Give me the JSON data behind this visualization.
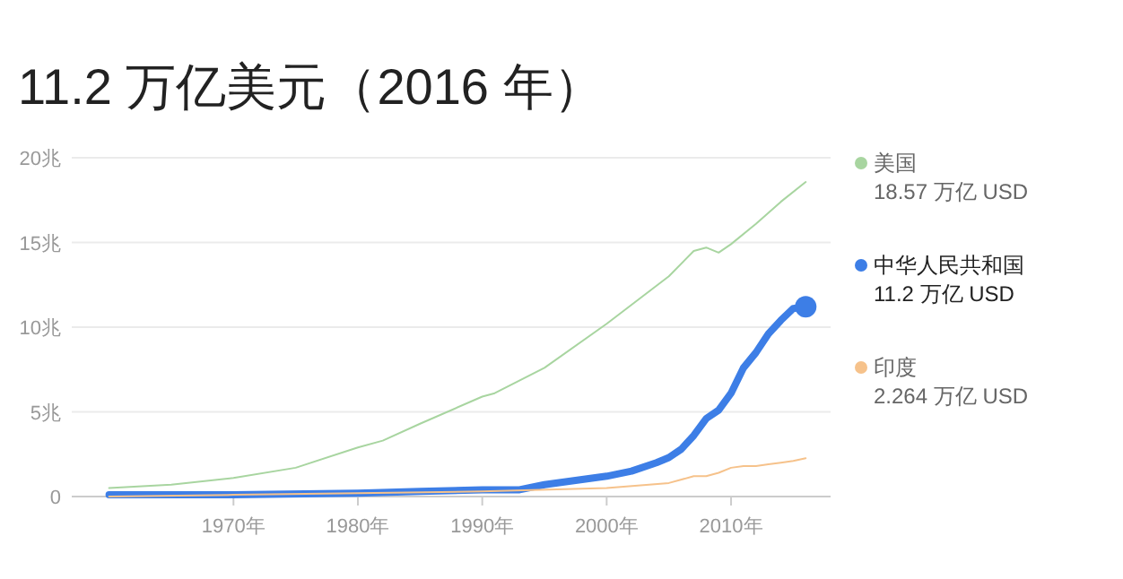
{
  "chart_data": {
    "type": "line",
    "title": "11.2 万亿美元（2016 年）",
    "xlim": [
      1957,
      2018
    ],
    "xticks": [
      {
        "value": 1970,
        "label": "1970年"
      },
      {
        "value": 1980,
        "label": "1980年"
      },
      {
        "value": 1990,
        "label": "1990年"
      },
      {
        "value": 2000,
        "label": "2000年"
      },
      {
        "value": 2010,
        "label": "2010年"
      }
    ],
    "ylim": [
      0,
      20
    ],
    "yticks": [
      {
        "value": 0,
        "label": "0"
      },
      {
        "value": 5,
        "label": "5兆"
      },
      {
        "value": 10,
        "label": "10兆"
      },
      {
        "value": 15,
        "label": "15兆"
      },
      {
        "value": 20,
        "label": "20兆"
      }
    ],
    "grid": "y",
    "legend": "right",
    "series": [
      {
        "name": "美国",
        "color": "#a8d5a0",
        "x": [
          1960,
          1965,
          1970,
          1975,
          1980,
          1982,
          1985,
          1990,
          1991,
          1995,
          2000,
          2005,
          2007,
          2008,
          2009,
          2010,
          2012,
          2014,
          2016
        ],
        "values": [
          0.5,
          0.7,
          1.1,
          1.7,
          2.9,
          3.3,
          4.3,
          5.9,
          6.1,
          7.6,
          10.2,
          13.0,
          14.5,
          14.7,
          14.4,
          14.9,
          16.1,
          17.4,
          18.57
        ]
      },
      {
        "name": "中华人民共和国",
        "color": "#3d7ee6",
        "x": [
          1960,
          1970,
          1980,
          1985,
          1990,
          1993,
          1995,
          2000,
          2002,
          2004,
          2005,
          2006,
          2007,
          2008,
          2009,
          2010,
          2011,
          2012,
          2013,
          2014,
          2015,
          2016
        ],
        "values": [
          0.1,
          0.1,
          0.2,
          0.3,
          0.4,
          0.4,
          0.7,
          1.2,
          1.5,
          2.0,
          2.3,
          2.8,
          3.6,
          4.6,
          5.1,
          6.1,
          7.6,
          8.5,
          9.6,
          10.4,
          11.1,
          11.2
        ]
      },
      {
        "name": "印度",
        "color": "#f6c28b",
        "x": [
          1960,
          1970,
          1980,
          1990,
          2000,
          2005,
          2007,
          2008,
          2009,
          2010,
          2011,
          2012,
          2013,
          2014,
          2015,
          2016
        ],
        "values": [
          0.0,
          0.1,
          0.2,
          0.3,
          0.5,
          0.8,
          1.2,
          1.2,
          1.4,
          1.7,
          1.8,
          1.8,
          1.9,
          2.0,
          2.1,
          2.264
        ]
      },
      {
        "type": "scatter",
        "color": "#3d7ee6",
        "x": [
          2016
        ],
        "values": [
          11.2
        ]
      }
    ],
    "annotations": [
      "18.57 万亿 USD",
      "11.2 万亿 USD",
      "2.264 万亿 USD"
    ]
  }
}
